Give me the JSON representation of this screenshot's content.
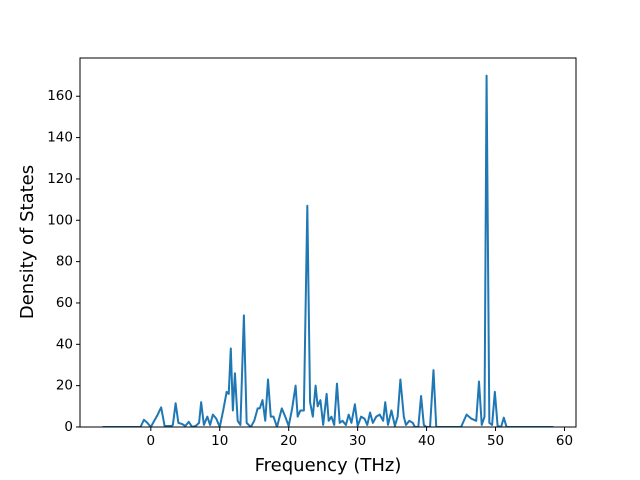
{
  "chart_data": {
    "type": "line",
    "xlabel": "Frequency (THz)",
    "ylabel": "Density of States",
    "x": [
      -7,
      -1.5,
      -1,
      -0.5,
      0,
      1,
      1.5,
      2,
      3,
      3.2,
      3.6,
      4,
      4.5,
      5,
      5.5,
      6,
      6.5,
      7,
      7.3,
      7.7,
      8.2,
      8.6,
      9,
      9.5,
      10,
      10.5,
      11,
      11.3,
      11.6,
      11.9,
      12.2,
      12.6,
      13,
      13.5,
      13.9,
      14.5,
      15,
      15.5,
      15.8,
      16.2,
      16.6,
      17,
      17.4,
      17.8,
      18.3,
      19,
      19.5,
      20,
      20.5,
      21,
      21.3,
      21.7,
      22.2,
      22.7,
      23.1,
      23.5,
      23.9,
      24.2,
      24.6,
      25,
      25.5,
      25.8,
      26.2,
      26.6,
      27,
      27.4,
      27.8,
      28.3,
      28.7,
      29.1,
      29.6,
      30,
      30.5,
      31,
      31.4,
      31.8,
      32.2,
      32.7,
      33.2,
      33.7,
      34,
      34.4,
      34.9,
      35.4,
      35.8,
      36.2,
      36.7,
      37,
      37.5,
      38,
      38.3,
      38.8,
      39.2,
      39.6,
      40,
      40.5,
      41,
      41.4,
      42,
      45,
      45.8,
      46.5,
      47.2,
      47.6,
      48,
      48.4,
      48.7,
      49.1,
      49.5,
      49.9,
      50.3,
      50.8,
      51.2,
      51.6,
      58.4
    ],
    "values": [
      0,
      0,
      3.5,
      2,
      0,
      6,
      9.5,
      0.5,
      0.5,
      1,
      11.5,
      2,
      1.5,
      0.5,
      2.5,
      0,
      0.5,
      2,
      12,
      1,
      5,
      1,
      6,
      4,
      0,
      8,
      17,
      16,
      38,
      8,
      26,
      3,
      1,
      54,
      2,
      0,
      3,
      9,
      9,
      13,
      3,
      23,
      5,
      5,
      0,
      9,
      5,
      0.5,
      9,
      20,
      5,
      8,
      8,
      107,
      12,
      5,
      20,
      10,
      13,
      1,
      16,
      3,
      5,
      1,
      21,
      2,
      3,
      1,
      6,
      2,
      11,
      0.5,
      5,
      4,
      1,
      7,
      2,
      5,
      6,
      3,
      12,
      1,
      8,
      0.5,
      5,
      23,
      5,
      1,
      3,
      2,
      0,
      0,
      15,
      1,
      0,
      0,
      27.5,
      0,
      0,
      0,
      6,
      4,
      3,
      22,
      1,
      5,
      170,
      2,
      1,
      17,
      0.5,
      0,
      4.5,
      0,
      0
    ],
    "color": "#1f77b4",
    "xlim": [
      -10.27,
      61.67
    ],
    "xticks": [
      0,
      10,
      20,
      30,
      40,
      50,
      60
    ],
    "ylim": [
      0,
      178.5
    ],
    "yticks": [
      0,
      20,
      40,
      60,
      80,
      100,
      120,
      140,
      160
    ]
  }
}
